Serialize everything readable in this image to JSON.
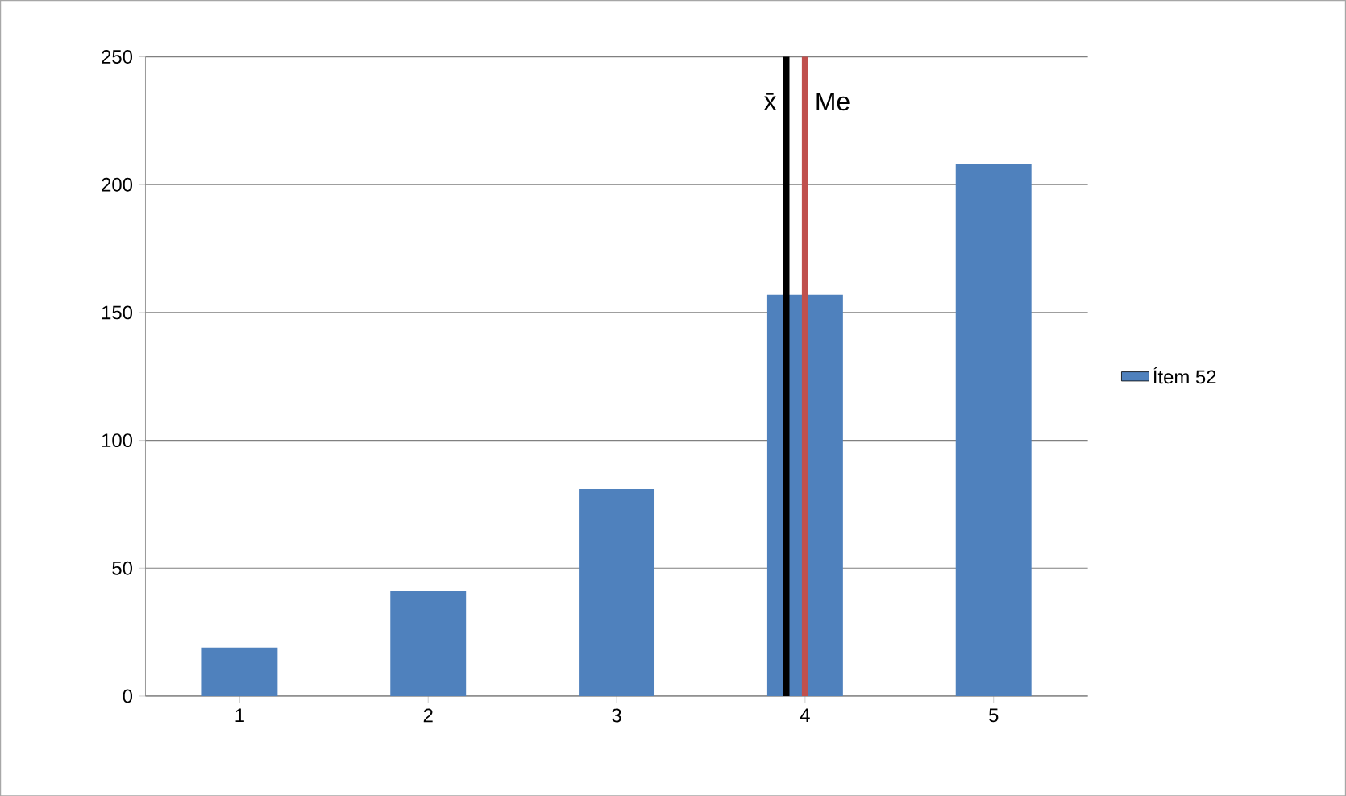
{
  "chart_data": {
    "type": "bar",
    "x": [
      1,
      2,
      3,
      4,
      5
    ],
    "series": [
      {
        "name": "Ítem 52",
        "color": "#4f81bd",
        "values": [
          19,
          41,
          81,
          157,
          208
        ]
      }
    ],
    "xlim": [
      0.5,
      5.5
    ],
    "xticks": [
      1,
      2,
      3,
      4,
      5
    ],
    "ylim": [
      0,
      250
    ],
    "yticks": [
      0,
      50,
      100,
      150,
      200,
      250
    ],
    "grid": "y",
    "legend": "right",
    "ref_lines": [
      {
        "axis": "x",
        "value": 3.9,
        "label": "x̄",
        "color": "#000000"
      },
      {
        "axis": "x",
        "value": 4,
        "label": "Me",
        "color": "#c0504d"
      }
    ]
  }
}
